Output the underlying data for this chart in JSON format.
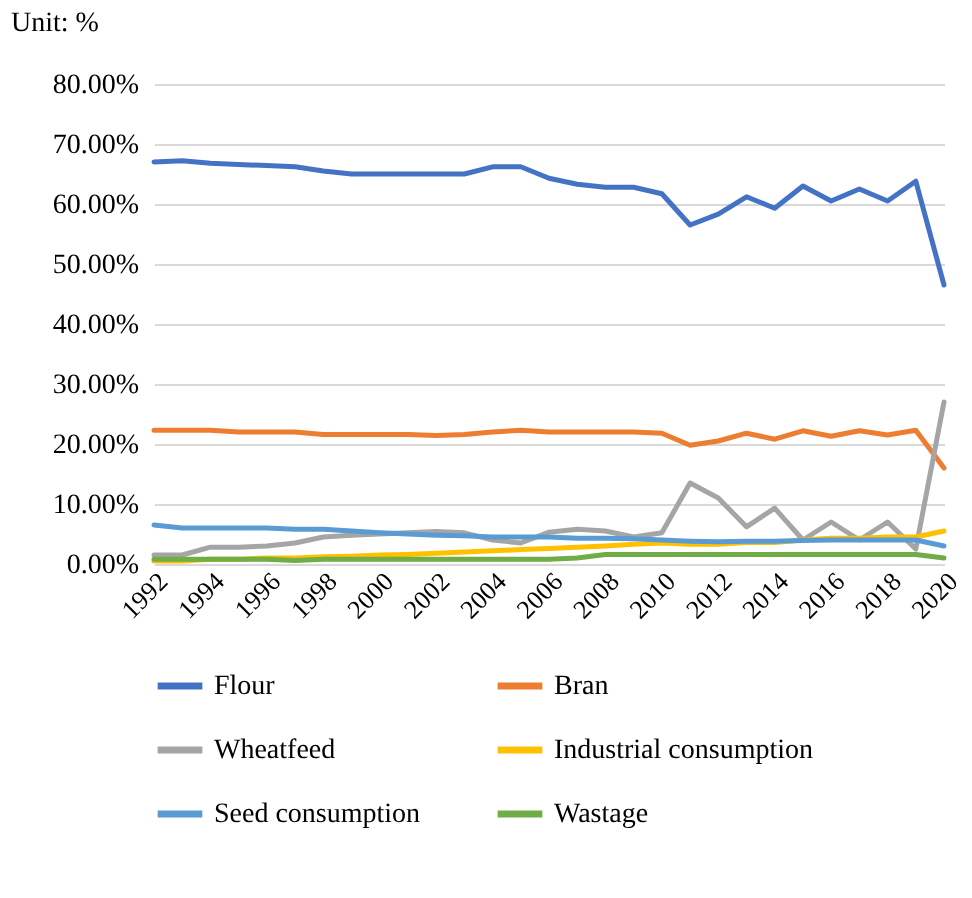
{
  "chart_data": {
    "type": "line",
    "ylabel": "Unit: %",
    "x": [
      1992,
      1993,
      1994,
      1995,
      1996,
      1997,
      1998,
      1999,
      2000,
      2001,
      2002,
      2003,
      2004,
      2005,
      2006,
      2007,
      2008,
      2009,
      2010,
      2011,
      2012,
      2013,
      2014,
      2015,
      2016,
      2017,
      2018,
      2019,
      2020
    ],
    "xlim": [
      1992,
      2020
    ],
    "xticks": [
      1992,
      1994,
      1996,
      1998,
      2000,
      2002,
      2004,
      2006,
      2008,
      2010,
      2012,
      2014,
      2016,
      2018,
      2020
    ],
    "ylim": [
      0,
      80
    ],
    "yticks": [
      {
        "value": 0,
        "label": "0.00%"
      },
      {
        "value": 10,
        "label": "10.00%"
      },
      {
        "value": 20,
        "label": "20.00%"
      },
      {
        "value": 30,
        "label": "30.00%"
      },
      {
        "value": 40,
        "label": "40.00%"
      },
      {
        "value": 50,
        "label": "50.00%"
      },
      {
        "value": 60,
        "label": "60.00%"
      },
      {
        "value": 70,
        "label": "70.00%"
      },
      {
        "value": 80,
        "label": "80.00%"
      }
    ],
    "grid": "y",
    "legend": "bottom",
    "line_style": "solid",
    "marker": "none",
    "series": [
      {
        "name": "Flour",
        "color": "#4472c4",
        "values": [
          67.0,
          67.2,
          66.8,
          66.6,
          66.4,
          66.2,
          65.5,
          65.0,
          65.0,
          65.0,
          65.0,
          65.0,
          66.2,
          66.2,
          64.3,
          63.3,
          62.8,
          62.8,
          61.7,
          56.5,
          58.3,
          61.2,
          59.3,
          63.0,
          60.5,
          62.5,
          60.5,
          63.8,
          46.5
        ]
      },
      {
        "name": "Bran",
        "color": "#ed7d31",
        "values": [
          22.3,
          22.3,
          22.3,
          22.0,
          22.0,
          22.0,
          21.6,
          21.6,
          21.6,
          21.6,
          21.4,
          21.6,
          22.0,
          22.3,
          22.0,
          22.0,
          22.0,
          22.0,
          21.8,
          19.8,
          20.5,
          21.8,
          20.8,
          22.2,
          21.3,
          22.2,
          21.5,
          22.3,
          16.0
        ]
      },
      {
        "name": "Wheatfeed",
        "color": "#a5a5a5",
        "values": [
          1.5,
          1.5,
          2.8,
          2.8,
          3.0,
          3.5,
          4.5,
          4.8,
          5.0,
          5.2,
          5.4,
          5.2,
          4.0,
          3.5,
          5.3,
          5.8,
          5.5,
          4.5,
          5.2,
          13.5,
          11.0,
          6.2,
          9.3,
          4.0,
          7.0,
          4.0,
          7.0,
          2.5,
          27.0
        ]
      },
      {
        "name": "Industrial consumption",
        "color": "#ffc000",
        "values": [
          0.5,
          0.5,
          0.8,
          0.8,
          1.0,
          1.0,
          1.2,
          1.3,
          1.5,
          1.6,
          1.8,
          2.0,
          2.2,
          2.4,
          2.6,
          2.8,
          3.0,
          3.3,
          3.5,
          3.3,
          3.3,
          3.6,
          3.6,
          4.0,
          4.3,
          4.3,
          4.5,
          4.5,
          5.5
        ]
      },
      {
        "name": "Seed consumption",
        "color": "#5b9bd5",
        "values": [
          6.5,
          6.0,
          6.0,
          6.0,
          6.0,
          5.8,
          5.8,
          5.5,
          5.2,
          5.0,
          4.8,
          4.7,
          4.5,
          4.5,
          4.5,
          4.3,
          4.3,
          4.2,
          4.0,
          3.8,
          3.7,
          3.8,
          3.8,
          3.9,
          4.0,
          4.0,
          4.0,
          4.0,
          3.0
        ]
      },
      {
        "name": "Wastage",
        "color": "#70ad47",
        "values": [
          0.8,
          0.8,
          0.8,
          0.8,
          0.8,
          0.6,
          0.8,
          0.8,
          0.8,
          0.8,
          0.8,
          0.8,
          0.8,
          0.8,
          0.8,
          1.0,
          1.6,
          1.6,
          1.6,
          1.6,
          1.6,
          1.6,
          1.6,
          1.6,
          1.6,
          1.6,
          1.6,
          1.6,
          1.0
        ]
      }
    ]
  }
}
